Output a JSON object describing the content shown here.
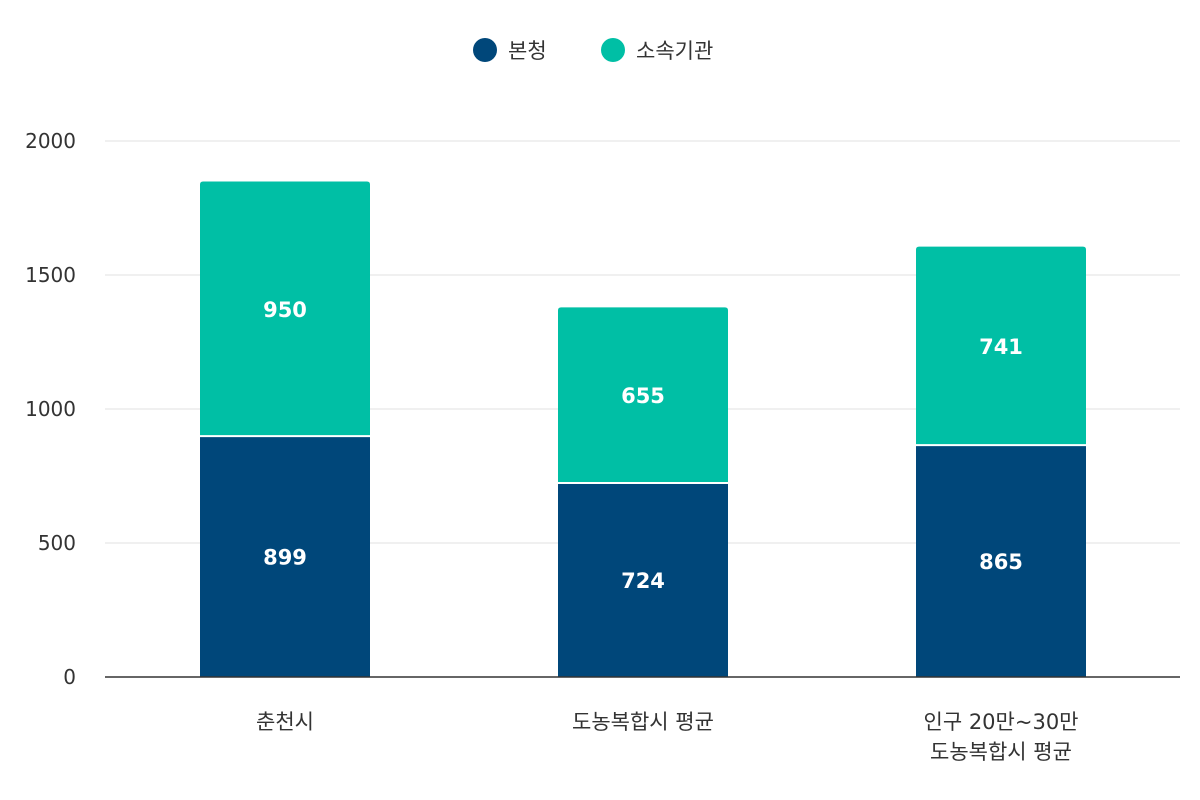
{
  "chart_data": {
    "type": "bar",
    "stacked": true,
    "title": "",
    "xlabel": "",
    "ylabel": "",
    "categories": [
      [
        "춘천시"
      ],
      [
        "도농복합시 평균"
      ],
      [
        "인구 20만~30만",
        "도농복합시 평균"
      ]
    ],
    "series": [
      {
        "name": "본청",
        "color": "#00477a",
        "values": [
          899,
          724,
          865
        ]
      },
      {
        "name": "소속기관",
        "color": "#00bfa5",
        "values": [
          950,
          655,
          741
        ]
      }
    ],
    "ylim": [
      0,
      2000
    ],
    "yticks": [
      0,
      500,
      1000,
      1500,
      2000
    ],
    "grid": true,
    "legend": "top-center",
    "data_labels": true
  }
}
